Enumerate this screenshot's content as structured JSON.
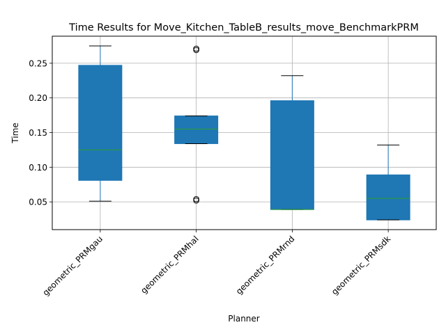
{
  "chart_data": {
    "type": "box",
    "title": "Time Results for Move_Kitchen_TableB_results_move_BenchmarkPRM",
    "xlabel": "Planner",
    "ylabel": "Time",
    "ylim": [
      0.01,
      0.289
    ],
    "yticks": [
      0.05,
      0.1,
      0.15,
      0.2,
      0.25
    ],
    "ytick_labels": [
      "0.05",
      "0.10",
      "0.15",
      "0.20",
      "0.25"
    ],
    "grid": true,
    "categories": [
      "geometric_PRMgau",
      "geometric_PRMhal",
      "geometric_PRMrnd",
      "geometric_PRMsdk"
    ],
    "boxes": [
      {
        "label": "geometric_PRMgau",
        "whisker_low": 0.051,
        "q1": 0.081,
        "median": 0.125,
        "q3": 0.247,
        "whisker_high": 0.275,
        "outliers": []
      },
      {
        "label": "geometric_PRMhal",
        "whisker_low": 0.134,
        "q1": 0.134,
        "median": 0.155,
        "q3": 0.174,
        "whisker_high": 0.174,
        "outliers": [
          0.052,
          0.054,
          0.269,
          0.271
        ]
      },
      {
        "label": "geometric_PRMrnd",
        "whisker_low": 0.039,
        "q1": 0.039,
        "median": 0.039,
        "q3": 0.196,
        "whisker_high": 0.232,
        "outliers": []
      },
      {
        "label": "geometric_PRMsdk",
        "whisker_low": 0.024,
        "q1": 0.024,
        "median": 0.055,
        "q3": 0.089,
        "whisker_high": 0.132,
        "outliers": []
      }
    ],
    "colors": {
      "box_fill": "#1f77b4",
      "median": "#2ca02c",
      "whisker": "#1f77b4",
      "cap": "#000000",
      "grid": "#b0b0b0"
    }
  }
}
